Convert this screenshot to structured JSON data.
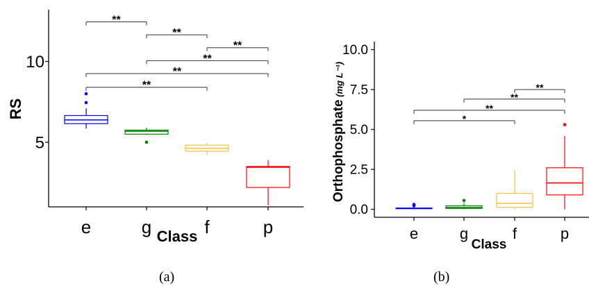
{
  "panel_labels": [
    "(a)",
    "(b)"
  ],
  "chart_data": [
    {
      "type": "boxplot",
      "panel": "(a)",
      "xlabel": "Class",
      "ylabel": "RS",
      "categories": [
        "e",
        "g",
        "f",
        "p"
      ],
      "colors": [
        "#0000ff",
        "#008000",
        "#f5c242",
        "#ff0000"
      ],
      "ylim": [
        1.0,
        13.2
      ],
      "yticks": [
        5,
        10
      ],
      "ytick_labels": [
        "5",
        "10"
      ],
      "boxes": [
        {
          "class": "e",
          "whisker_low": 5.85,
          "q1": 6.15,
          "median": 6.38,
          "q3": 6.65,
          "whisker_high": 7.1,
          "outliers": [
            7.45,
            8.0
          ]
        },
        {
          "class": "g",
          "whisker_low": 5.45,
          "q1": 5.5,
          "median": 5.68,
          "q3": 5.75,
          "whisker_high": 5.9,
          "outliers": [
            5.0
          ]
        },
        {
          "class": "f",
          "whisker_low": 4.2,
          "q1": 4.45,
          "median": 4.62,
          "q3": 4.82,
          "whisker_high": 4.95,
          "outliers": []
        },
        {
          "class": "p",
          "whisker_low": 1.1,
          "q1": 2.2,
          "median": 3.45,
          "q3": 3.5,
          "whisker_high": 3.9,
          "outliers": []
        }
      ],
      "annotations": [
        {
          "from": "e",
          "to": "g",
          "y": 12.45,
          "label": "**"
        },
        {
          "from": "g",
          "to": "f",
          "y": 11.65,
          "label": "**"
        },
        {
          "from": "f",
          "to": "p",
          "y": 10.85,
          "label": "**"
        },
        {
          "from": "g",
          "to": "p",
          "y": 10.05,
          "label": "**"
        },
        {
          "from": "e",
          "to": "p",
          "y": 9.25,
          "label": "**"
        },
        {
          "from": "e",
          "to": "f",
          "y": 8.4,
          "label": "**"
        }
      ]
    },
    {
      "type": "boxplot",
      "panel": "(b)",
      "xlabel": "Class",
      "ylabel": "Orthophosphate",
      "ylabel_unit": "(mg L⁻¹)",
      "categories": [
        "e",
        "g",
        "f",
        "p"
      ],
      "colors": [
        "#0000ff",
        "#008000",
        "#f5c242",
        "#ff0000"
      ],
      "ylim": [
        -0.5,
        10.5
      ],
      "yticks": [
        0,
        2.5,
        5,
        7.5,
        10
      ],
      "ytick_labels": [
        "0.0",
        "2.5",
        "5.0",
        "7.5",
        "10.0"
      ],
      "boxes": [
        {
          "class": "e",
          "whisker_low": 0.02,
          "q1": 0.04,
          "median": 0.06,
          "q3": 0.08,
          "whisker_high": 0.12,
          "outliers": [
            0.22,
            0.3
          ]
        },
        {
          "class": "g",
          "whisker_low": 0.0,
          "q1": 0.05,
          "median": 0.12,
          "q3": 0.22,
          "whisker_high": 0.4,
          "outliers": [
            0.55
          ]
        },
        {
          "class": "f",
          "whisker_low": 0.0,
          "q1": 0.12,
          "median": 0.38,
          "q3": 1.0,
          "whisker_high": 2.45,
          "outliers": []
        },
        {
          "class": "p",
          "whisker_low": 0.0,
          "q1": 0.9,
          "median": 1.65,
          "q3": 2.6,
          "whisker_high": 4.6,
          "outliers": [
            5.3
          ]
        }
      ],
      "annotations": [
        {
          "from": "f",
          "to": "p",
          "y": 7.5,
          "label": "**"
        },
        {
          "from": "g",
          "to": "p",
          "y": 6.9,
          "label": "**"
        },
        {
          "from": "e",
          "to": "p",
          "y": 6.2,
          "label": "**"
        },
        {
          "from": "e",
          "to": "f",
          "y": 5.55,
          "label": "*"
        }
      ]
    }
  ]
}
